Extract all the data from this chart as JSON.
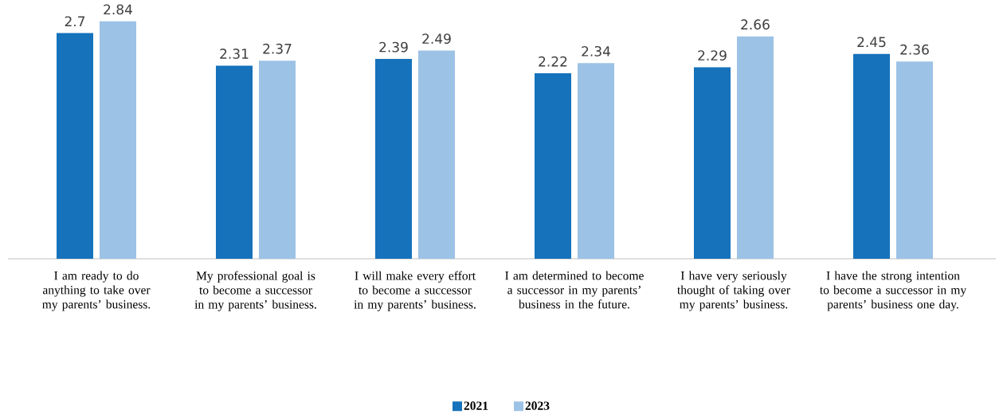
{
  "chart_data": {
    "type": "bar",
    "categories": [
      "I am ready to do anything to take over my parents’ business.",
      "My professional goal is to become a successor in my parents’ business.",
      "I will make every effort to become a successor in my parents’ business.",
      "I am determined to become a successor in my parents’ business in the future.",
      "I have very seriously thought of taking over my parents’ business.",
      "I have the strong intention to become a successor in my parents’ business one day."
    ],
    "series": [
      {
        "name": "2021",
        "color": "#1572bb",
        "values": [
          2.7,
          2.31,
          2.39,
          2.22,
          2.29,
          2.45
        ]
      },
      {
        "name": "2023",
        "color": "#9cc2e6",
        "values": [
          2.84,
          2.37,
          2.49,
          2.34,
          2.66,
          2.36
        ]
      }
    ],
    "data_labels": true,
    "legend": "bottom"
  }
}
